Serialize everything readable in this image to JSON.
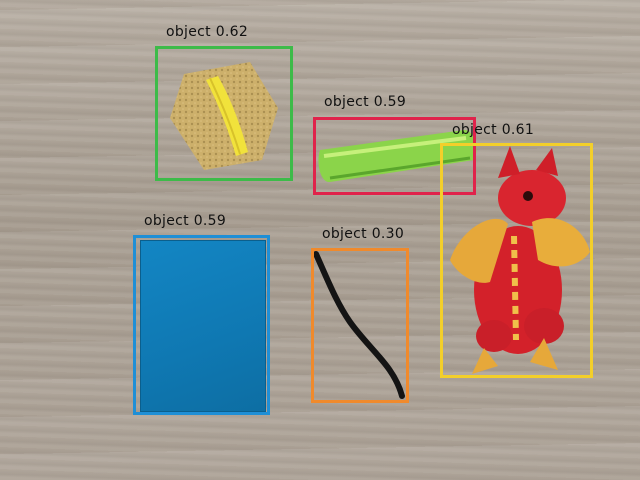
{
  "detections": [
    {
      "label": "object 0.62",
      "color": "#3dbb49"
    },
    {
      "label": "object 0.59",
      "color": "#e0234b"
    },
    {
      "label": "object 0.61",
      "color": "#f3cf2a"
    },
    {
      "label": "object 0.59",
      "color": "#1f8fd6"
    },
    {
      "label": "object 0.30",
      "color": "#f08a2c"
    }
  ]
}
